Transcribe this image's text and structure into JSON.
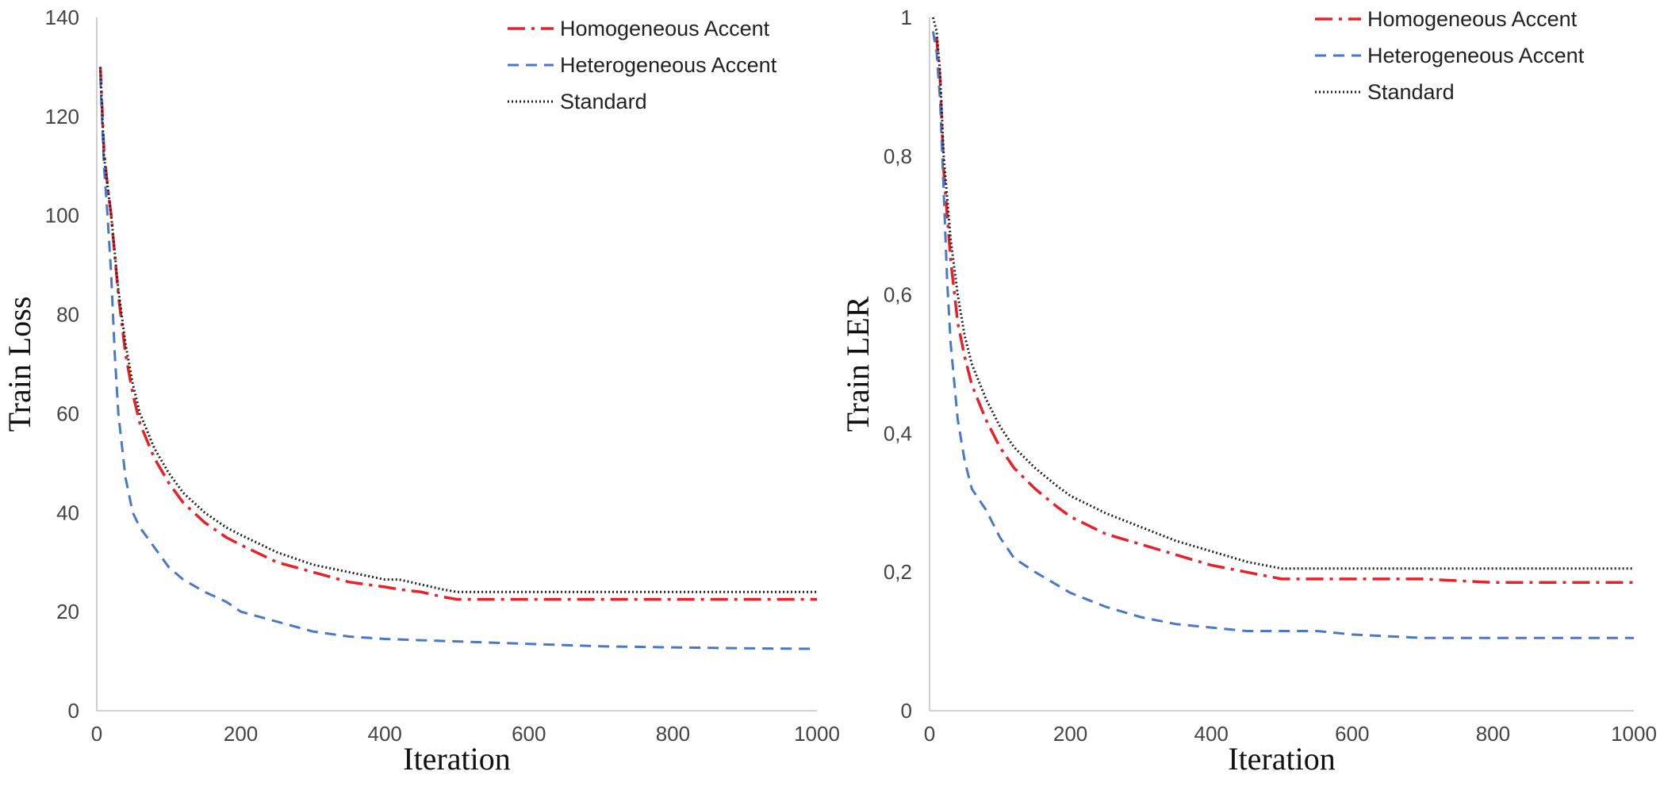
{
  "colors": {
    "homogeneous": "#e8202a",
    "heterogeneous": "#4a78c8",
    "standard": "#222222",
    "axis": "#cfcfcf"
  },
  "chart_data": [
    {
      "type": "line",
      "title": "",
      "xlabel": "Iteration",
      "ylabel": "Train Loss",
      "xlim": [
        0,
        1000
      ],
      "ylim": [
        0,
        140
      ],
      "xticks": [
        0,
        200,
        400,
        600,
        800,
        1000
      ],
      "xtick_labels": [
        "0",
        "200",
        "400",
        "600",
        "800",
        "1000"
      ],
      "yticks": [
        0,
        20,
        40,
        60,
        80,
        100,
        120,
        140
      ],
      "ytick_labels": [
        "0",
        "20",
        "40",
        "60",
        "80",
        "100",
        "120",
        "140"
      ],
      "grid": false,
      "legend_position": "top-right",
      "series": [
        {
          "name": "Homogeneous Accent",
          "style": "dash-dot",
          "color_key": "homogeneous",
          "x": [
            5,
            10,
            15,
            20,
            30,
            40,
            50,
            60,
            80,
            100,
            120,
            150,
            180,
            200,
            250,
            300,
            350,
            400,
            420,
            450,
            480,
            500,
            600,
            650,
            700,
            800,
            900,
            1000
          ],
          "y": [
            130,
            113,
            106,
            100,
            84,
            72,
            64,
            58,
            51,
            46,
            42,
            38,
            35,
            33.5,
            30,
            28,
            26,
            25,
            24.5,
            24,
            23,
            22.5,
            22.5,
            22.5,
            22.5,
            22.5,
            22.5,
            22.5
          ]
        },
        {
          "name": "Heterogeneous Accent",
          "style": "dashed",
          "color_key": "heterogeneous",
          "x": [
            5,
            10,
            15,
            20,
            25,
            30,
            40,
            50,
            60,
            80,
            100,
            120,
            150,
            180,
            200,
            250,
            300,
            350,
            400,
            500,
            600,
            700,
            800,
            900,
            1000
          ],
          "y": [
            128,
            110,
            100,
            88,
            72,
            60,
            47,
            40,
            37,
            33,
            29,
            26.5,
            24,
            22,
            20,
            18,
            16,
            15,
            14.5,
            14,
            13.5,
            13,
            12.8,
            12.6,
            12.5
          ]
        },
        {
          "name": "Standard",
          "style": "dotted",
          "color_key": "standard",
          "x": [
            5,
            10,
            15,
            20,
            30,
            40,
            50,
            60,
            80,
            100,
            120,
            150,
            180,
            200,
            250,
            300,
            350,
            400,
            420,
            450,
            480,
            500,
            600,
            700,
            800,
            900,
            1000
          ],
          "y": [
            130,
            112,
            106,
            100,
            85,
            74,
            66,
            60,
            53,
            48,
            44,
            40,
            37,
            35.5,
            32,
            29.5,
            28,
            26.5,
            26.5,
            25.5,
            24.5,
            24,
            24,
            24,
            24,
            24,
            24
          ]
        }
      ]
    },
    {
      "type": "line",
      "title": "",
      "xlabel": "Iteration",
      "ylabel": "Train LER",
      "xlim": [
        0,
        1000
      ],
      "ylim": [
        0,
        1
      ],
      "xticks": [
        0,
        200,
        400,
        600,
        800,
        1000
      ],
      "xtick_labels": [
        "0",
        "200",
        "400",
        "600",
        "800",
        "1000"
      ],
      "yticks": [
        0,
        0.2,
        0.4,
        0.6,
        0.8,
        1
      ],
      "ytick_labels": [
        "0",
        "0,2",
        "0,4",
        "0,6",
        "0,8",
        "1"
      ],
      "grid": false,
      "legend_position": "top-right",
      "series": [
        {
          "name": "Homogeneous Accent",
          "style": "dash-dot",
          "color_key": "homogeneous",
          "x": [
            5,
            10,
            15,
            20,
            30,
            40,
            50,
            60,
            80,
            100,
            120,
            150,
            180,
            200,
            250,
            300,
            350,
            400,
            450,
            500,
            600,
            700,
            800,
            900,
            1000
          ],
          "y": [
            0.97,
            0.97,
            0.91,
            0.78,
            0.65,
            0.56,
            0.51,
            0.47,
            0.42,
            0.38,
            0.35,
            0.32,
            0.295,
            0.28,
            0.255,
            0.24,
            0.225,
            0.21,
            0.2,
            0.19,
            0.19,
            0.19,
            0.185,
            0.185,
            0.185
          ]
        },
        {
          "name": "Heterogeneous Accent",
          "style": "dashed",
          "color_key": "heterogeneous",
          "x": [
            5,
            10,
            15,
            20,
            25,
            30,
            40,
            50,
            60,
            80,
            100,
            120,
            150,
            200,
            250,
            300,
            350,
            400,
            450,
            500,
            550,
            600,
            700,
            800,
            900,
            1000
          ],
          "y": [
            0.98,
            0.95,
            0.88,
            0.75,
            0.62,
            0.53,
            0.42,
            0.36,
            0.32,
            0.29,
            0.25,
            0.22,
            0.2,
            0.17,
            0.15,
            0.135,
            0.125,
            0.12,
            0.115,
            0.115,
            0.115,
            0.11,
            0.105,
            0.105,
            0.105,
            0.105
          ]
        },
        {
          "name": "Standard",
          "style": "dotted",
          "color_key": "standard",
          "x": [
            5,
            10,
            15,
            20,
            30,
            40,
            50,
            60,
            80,
            100,
            120,
            150,
            180,
            200,
            250,
            300,
            350,
            400,
            450,
            500,
            600,
            700,
            800,
            900,
            1000
          ],
          "y": [
            1,
            0.98,
            0.92,
            0.8,
            0.68,
            0.6,
            0.54,
            0.5,
            0.45,
            0.41,
            0.38,
            0.35,
            0.325,
            0.31,
            0.285,
            0.265,
            0.245,
            0.23,
            0.215,
            0.205,
            0.205,
            0.205,
            0.205,
            0.205,
            0.205
          ]
        }
      ]
    }
  ]
}
